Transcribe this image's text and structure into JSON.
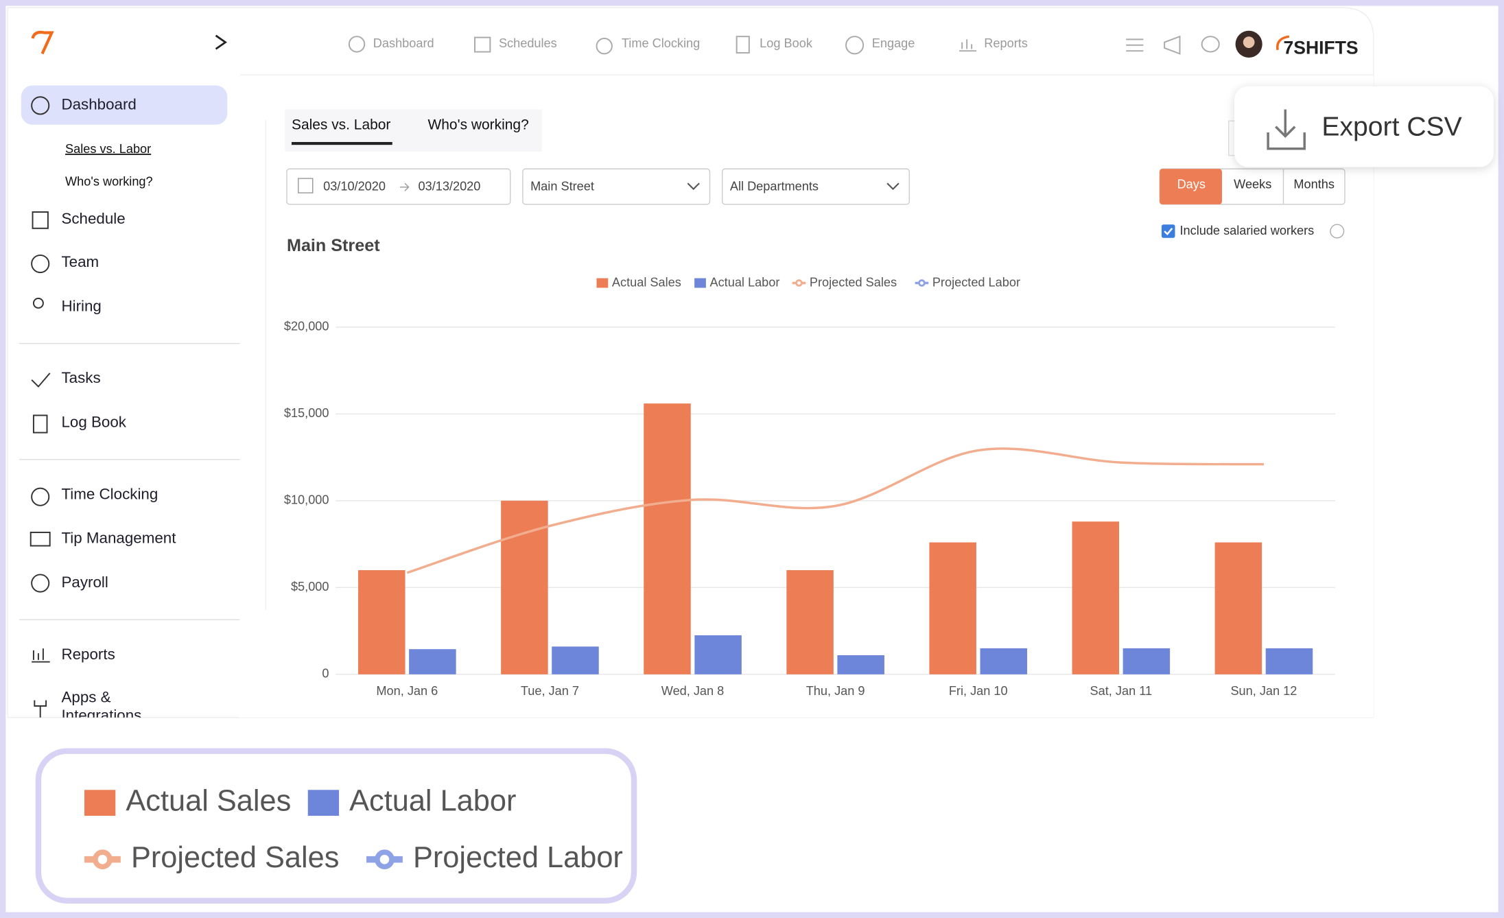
{
  "brand": "7SHIFTS",
  "top_nav": [
    "Dashboard",
    "Schedules",
    "Time Clocking",
    "Log Book",
    "Engage",
    "Reports"
  ],
  "sidebar": [
    "Dashboard",
    "Sales vs. Labor",
    "Who's working?",
    "Schedule",
    "Team",
    "Hiring",
    "Tasks",
    "Log Book",
    "Time Clocking",
    "Tip Management",
    "Payroll",
    "Reports",
    "Apps & Integrations"
  ],
  "tabs": [
    "Sales vs. Labor",
    "Who's working?"
  ],
  "filters": {
    "date_from": "03/10/2020",
    "date_to": "03/13/2020",
    "location": "Main Street",
    "department": "All Departments"
  },
  "period": [
    "Days",
    "Weeks",
    "Months"
  ],
  "salaried": "Include salaried workers",
  "export": "Export CSV",
  "chart_data": {
    "type": "bar",
    "title": "Main Street",
    "categories": [
      "Mon, Jan 6",
      "Tue, Jan 7",
      "Wed, Jan 8",
      "Thu, Jan 9",
      "Fri, Jan 10",
      "Sat, Jan 11",
      "Sun, Jan 12"
    ],
    "series": [
      {
        "name": "Actual Sales",
        "type": "bar",
        "color": "#ec7d55",
        "values": [
          6000,
          10000,
          15600,
          6000,
          7600,
          8800,
          7600
        ]
      },
      {
        "name": "Actual Labor",
        "type": "bar",
        "color": "#6d86d9",
        "values": [
          1450,
          1600,
          2250,
          1100,
          1500,
          1500,
          1500
        ]
      },
      {
        "name": "Projected Sales",
        "type": "line",
        "color": "#f2ad8f",
        "values": [
          5850,
          8550,
          10050,
          9700,
          12900,
          12200,
          12100
        ]
      },
      {
        "name": "Projected Labor",
        "type": "line",
        "color": "#8ea3e6",
        "values": [
          null,
          null,
          null,
          null,
          null,
          null,
          null
        ]
      }
    ],
    "ylim": [
      0,
      20000
    ],
    "yticks": [
      0,
      {
        "value": 5000,
        "label": "$5,000"
      },
      {
        "value": 10000,
        "label": "$10,000"
      },
      {
        "value": 15000,
        "label": "$15,000"
      },
      {
        "value": 20000,
        "label": "$20,000"
      }
    ],
    "grid": true
  }
}
